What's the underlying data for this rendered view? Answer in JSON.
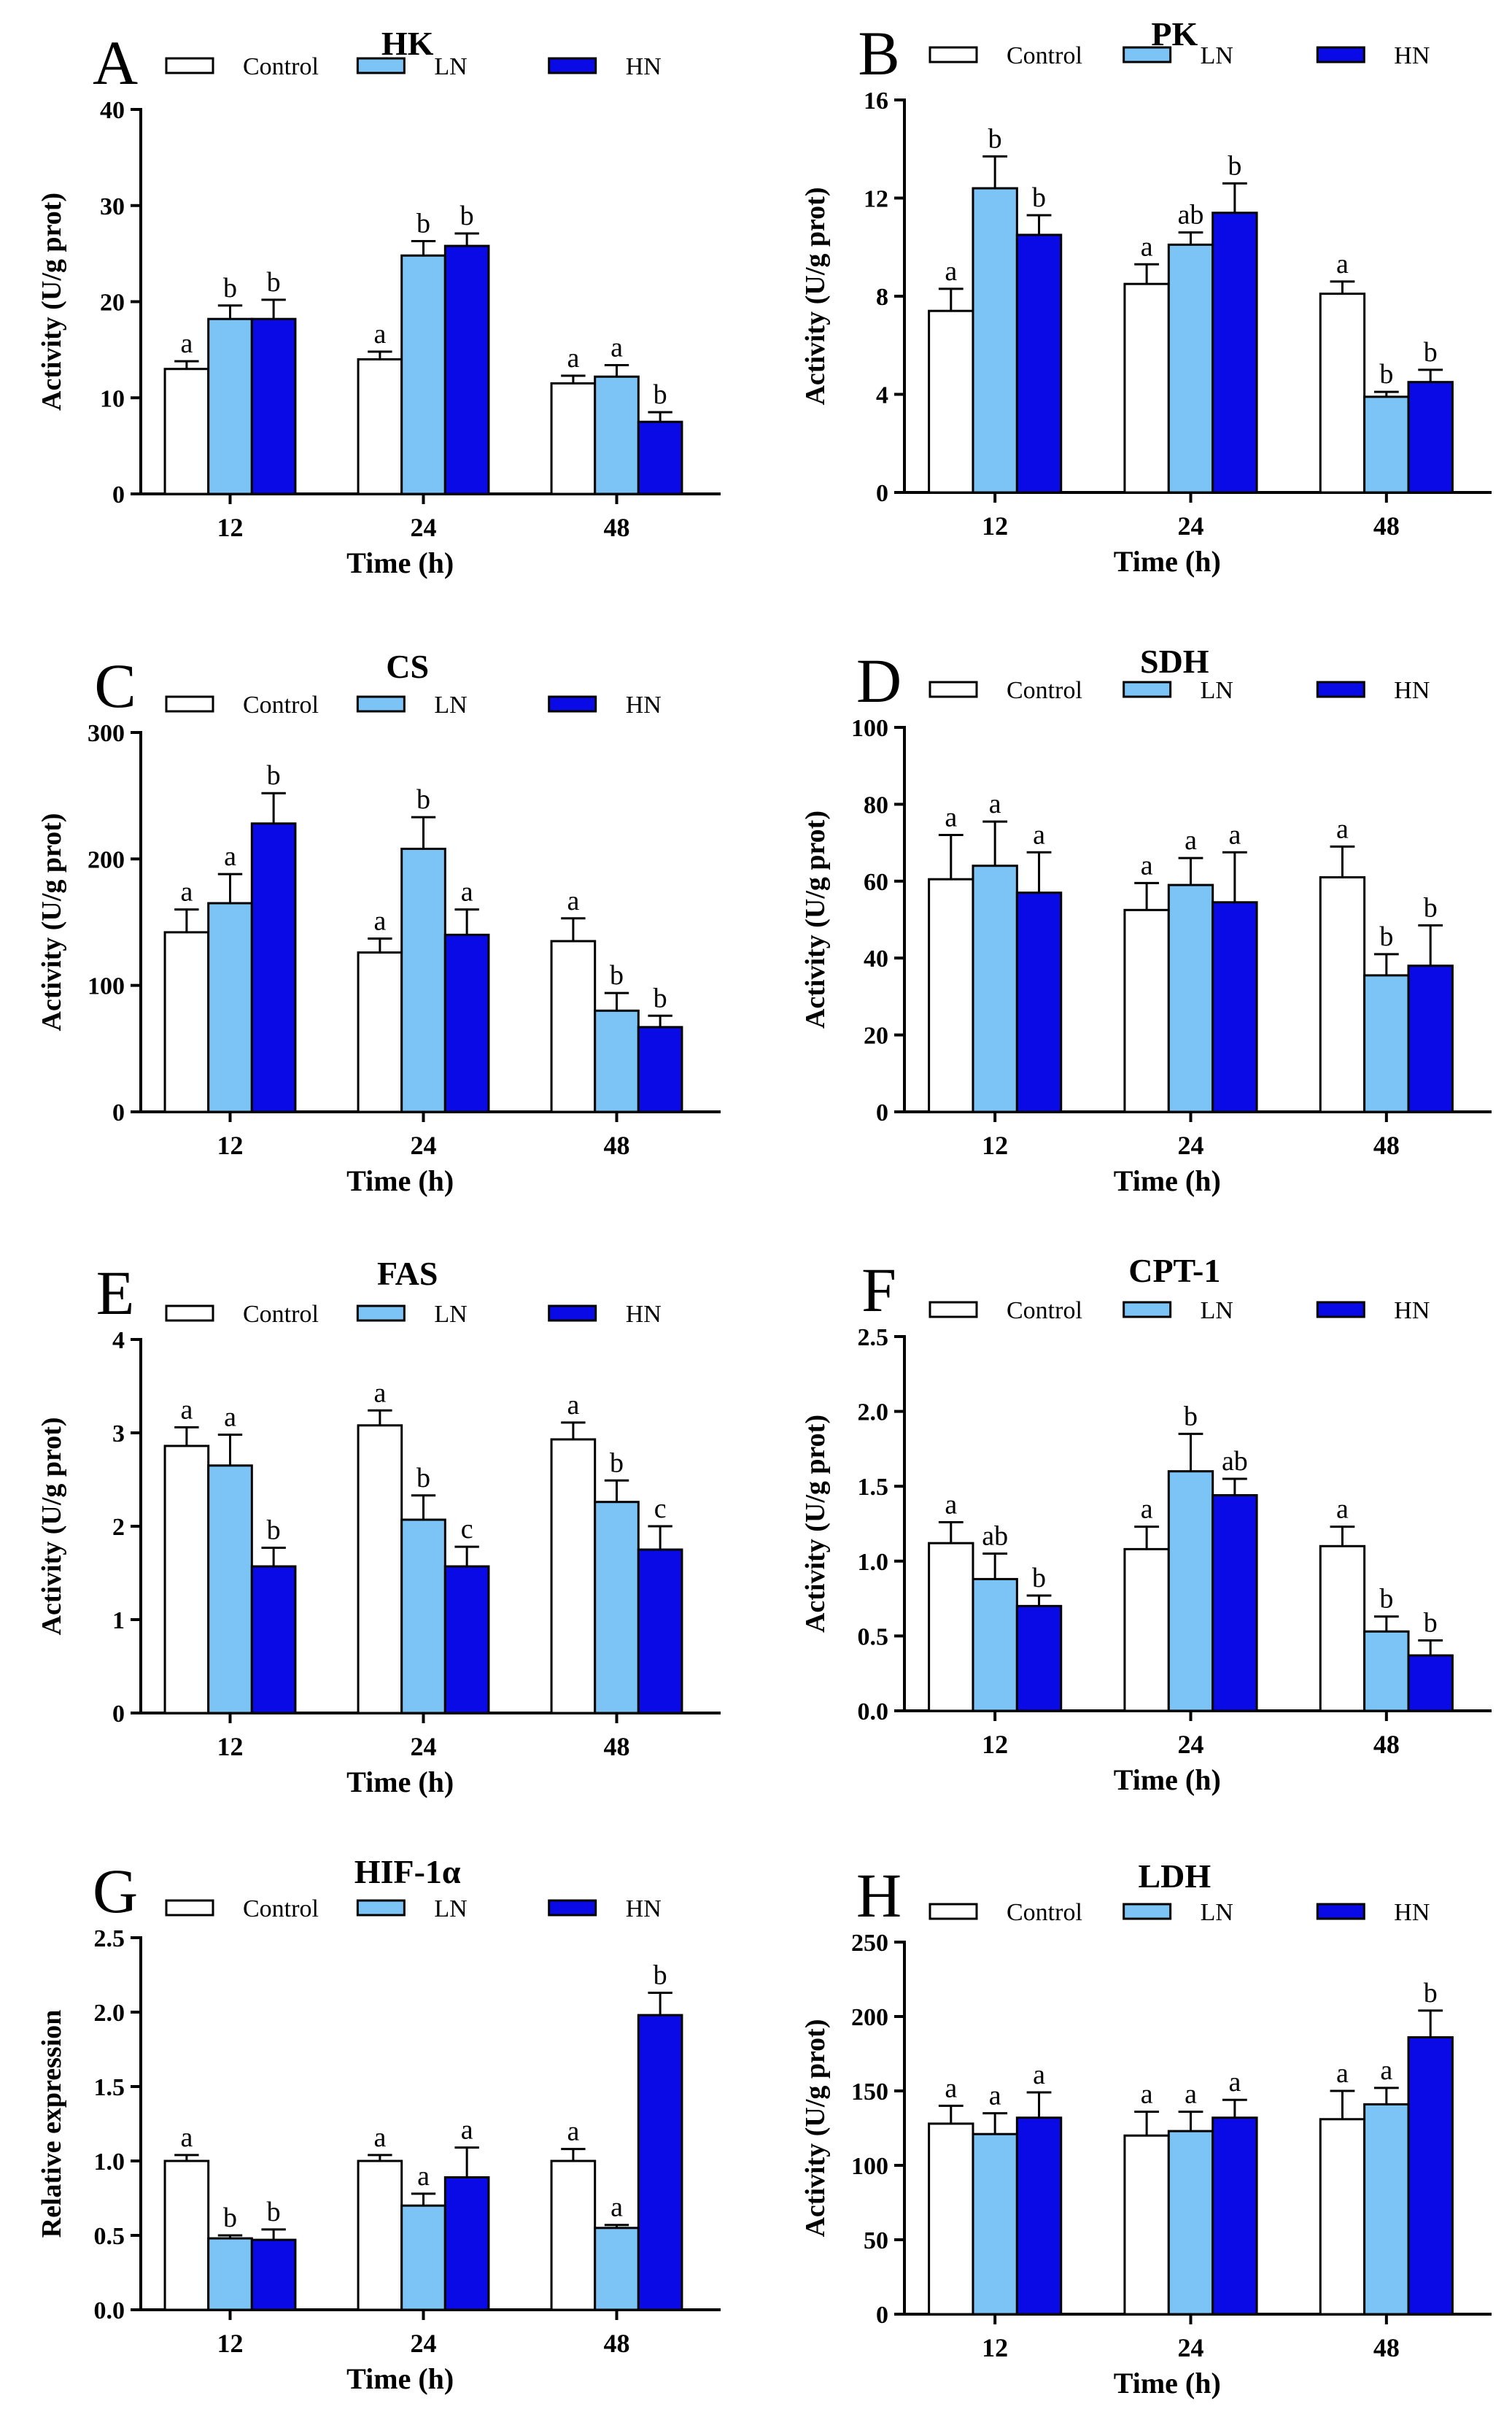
{
  "colors": {
    "Control": "#ffffff",
    "LN": "#7bc4f5",
    "HN": "#0a0ae6"
  },
  "chart_data": [
    {
      "type": "bar",
      "panel": "A",
      "title": "HK",
      "categories": [
        "12",
        "24",
        "48"
      ],
      "xlabel": "Time (h)",
      "ylabel": "Activity (U/g prot)",
      "ylim": [
        0,
        40
      ],
      "yticks": [
        0,
        10,
        20,
        30,
        40
      ],
      "grid": false,
      "legend": "top",
      "series": [
        {
          "name": "Control",
          "values": [
            13.0,
            14.0,
            11.5
          ],
          "errors": [
            0.8,
            0.8,
            0.8
          ],
          "letters": [
            "a",
            "a",
            "a"
          ]
        },
        {
          "name": "LN",
          "values": [
            18.2,
            24.8,
            12.2
          ],
          "errors": [
            1.4,
            1.5,
            1.2
          ],
          "letters": [
            "b",
            "b",
            "a"
          ]
        },
        {
          "name": "HN",
          "values": [
            18.2,
            25.8,
            7.5
          ],
          "errors": [
            2.0,
            1.3,
            1.0
          ],
          "letters": [
            "b",
            "b",
            "b"
          ]
        }
      ]
    },
    {
      "type": "bar",
      "panel": "B",
      "title": "PK",
      "categories": [
        "12",
        "24",
        "48"
      ],
      "xlabel": "Time (h)",
      "ylabel": "Activity (U/g prot)",
      "ylim": [
        0,
        16
      ],
      "yticks": [
        0,
        4,
        8,
        12,
        16
      ],
      "grid": false,
      "legend": "top",
      "series": [
        {
          "name": "Control",
          "values": [
            7.4,
            8.5,
            8.1
          ],
          "errors": [
            0.9,
            0.8,
            0.5
          ],
          "letters": [
            "a",
            "a",
            "a"
          ]
        },
        {
          "name": "LN",
          "values": [
            12.4,
            10.1,
            3.9
          ],
          "errors": [
            1.3,
            0.5,
            0.2
          ],
          "letters": [
            "b",
            "ab",
            "b"
          ]
        },
        {
          "name": "HN",
          "values": [
            10.5,
            11.4,
            4.5
          ],
          "errors": [
            0.8,
            1.2,
            0.5
          ],
          "letters": [
            "b",
            "b",
            "b"
          ]
        }
      ]
    },
    {
      "type": "bar",
      "panel": "C",
      "title": "CS",
      "categories": [
        "12",
        "24",
        "48"
      ],
      "xlabel": "Time (h)",
      "ylabel": "Activity (U/g prot)",
      "ylim": [
        0,
        300
      ],
      "yticks": [
        0,
        100,
        200,
        300
      ],
      "grid": false,
      "legend": "top",
      "series": [
        {
          "name": "Control",
          "values": [
            142,
            126,
            135
          ],
          "errors": [
            18,
            11,
            18
          ],
          "letters": [
            "a",
            "a",
            "a"
          ]
        },
        {
          "name": "LN",
          "values": [
            165,
            208,
            80
          ],
          "errors": [
            23,
            25,
            14
          ],
          "letters": [
            "a",
            "b",
            "b"
          ]
        },
        {
          "name": "HN",
          "values": [
            228,
            140,
            67
          ],
          "errors": [
            24,
            20,
            9
          ],
          "letters": [
            "b",
            "a",
            "b"
          ]
        }
      ]
    },
    {
      "type": "bar",
      "panel": "D",
      "title": "SDH",
      "categories": [
        "12",
        "24",
        "48"
      ],
      "xlabel": "Time (h)",
      "ylabel": "Activity (U/g prot)",
      "ylim": [
        0,
        100
      ],
      "yticks": [
        0,
        20,
        40,
        60,
        80,
        100
      ],
      "grid": false,
      "legend": "top",
      "series": [
        {
          "name": "Control",
          "values": [
            60.5,
            52.5,
            61
          ],
          "errors": [
            11.5,
            7,
            8
          ],
          "letters": [
            "a",
            "a",
            "a"
          ]
        },
        {
          "name": "LN",
          "values": [
            64,
            59,
            35.5
          ],
          "errors": [
            11.5,
            7,
            5.5
          ],
          "letters": [
            "a",
            "a",
            "b"
          ]
        },
        {
          "name": "HN",
          "values": [
            57,
            54.5,
            38
          ],
          "errors": [
            10.5,
            13,
            10.5
          ],
          "letters": [
            "a",
            "a",
            "b"
          ]
        }
      ]
    },
    {
      "type": "bar",
      "panel": "E",
      "title": "FAS",
      "categories": [
        "12",
        "24",
        "48"
      ],
      "xlabel": "Time (h)",
      "ylabel": "Activity (U/g prot)",
      "ylim": [
        0,
        4
      ],
      "yticks": [
        0,
        1,
        2,
        3,
        4
      ],
      "grid": false,
      "legend": "top",
      "series": [
        {
          "name": "Control",
          "values": [
            2.86,
            3.08,
            2.93
          ],
          "errors": [
            0.2,
            0.16,
            0.18
          ],
          "letters": [
            "a",
            "a",
            "a"
          ]
        },
        {
          "name": "LN",
          "values": [
            2.65,
            2.07,
            2.26
          ],
          "errors": [
            0.33,
            0.26,
            0.23
          ],
          "letters": [
            "a",
            "b",
            "b"
          ]
        },
        {
          "name": "HN",
          "values": [
            1.57,
            1.57,
            1.75
          ],
          "errors": [
            0.2,
            0.21,
            0.25
          ],
          "letters": [
            "b",
            "c",
            "c"
          ]
        }
      ]
    },
    {
      "type": "bar",
      "panel": "F",
      "title": "CPT-1",
      "categories": [
        "12",
        "24",
        "48"
      ],
      "xlabel": "Time (h)",
      "ylabel": "Activity (U/g prot)",
      "ylim": [
        0,
        2.5
      ],
      "yticks": [
        0.0,
        0.5,
        1.0,
        1.5,
        2.0,
        2.5
      ],
      "grid": false,
      "legend": "top",
      "series": [
        {
          "name": "Control",
          "values": [
            1.12,
            1.08,
            1.1
          ],
          "errors": [
            0.14,
            0.15,
            0.13
          ],
          "letters": [
            "a",
            "a",
            "a"
          ]
        },
        {
          "name": "LN",
          "values": [
            0.88,
            1.6,
            0.53
          ],
          "errors": [
            0.17,
            0.25,
            0.1
          ],
          "letters": [
            "ab",
            "b",
            "b"
          ]
        },
        {
          "name": "HN",
          "values": [
            0.7,
            1.44,
            0.37
          ],
          "errors": [
            0.07,
            0.11,
            0.1
          ],
          "letters": [
            "b",
            "ab",
            "b"
          ]
        }
      ]
    },
    {
      "type": "bar",
      "panel": "G",
      "title": "HIF-1α",
      "categories": [
        "12",
        "24",
        "48"
      ],
      "xlabel": "Time (h)",
      "ylabel": "Relative expression",
      "ylim": [
        0,
        2.5
      ],
      "yticks": [
        0.0,
        0.5,
        1.0,
        1.5,
        2.0,
        2.5
      ],
      "grid": false,
      "legend": "top",
      "series": [
        {
          "name": "Control",
          "values": [
            1.0,
            1.0,
            1.0
          ],
          "errors": [
            0.04,
            0.04,
            0.08
          ],
          "letters": [
            "a",
            "a",
            "a"
          ]
        },
        {
          "name": "LN",
          "values": [
            0.48,
            0.7,
            0.55
          ],
          "errors": [
            0.02,
            0.08,
            0.02
          ],
          "letters": [
            "b",
            "a",
            "a"
          ]
        },
        {
          "name": "HN",
          "values": [
            0.47,
            0.89,
            1.98
          ],
          "errors": [
            0.07,
            0.2,
            0.15
          ],
          "letters": [
            "b",
            "a",
            "b"
          ]
        }
      ]
    },
    {
      "type": "bar",
      "panel": "H",
      "title": "LDH",
      "categories": [
        "12",
        "24",
        "48"
      ],
      "xlabel": "Time (h)",
      "ylabel": "Activity (U/g prot)",
      "ylim": [
        0,
        250
      ],
      "yticks": [
        0,
        50,
        100,
        150,
        200,
        250
      ],
      "grid": false,
      "legend": "top",
      "series": [
        {
          "name": "Control",
          "values": [
            128,
            120,
            131
          ],
          "errors": [
            12,
            16,
            19
          ],
          "letters": [
            "a",
            "a",
            "a"
          ]
        },
        {
          "name": "LN",
          "values": [
            121,
            123,
            141
          ],
          "errors": [
            14,
            13,
            11
          ],
          "letters": [
            "a",
            "a",
            "a"
          ]
        },
        {
          "name": "HN",
          "values": [
            132,
            132,
            186
          ],
          "errors": [
            17,
            12,
            18
          ],
          "letters": [
            "a",
            "a",
            "b"
          ]
        }
      ]
    }
  ]
}
